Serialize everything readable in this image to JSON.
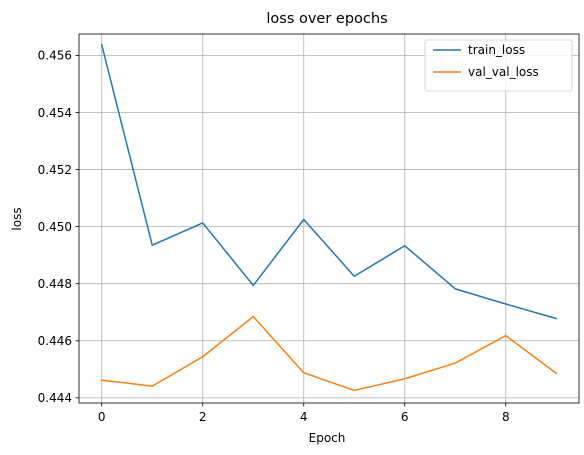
{
  "chart_data": {
    "type": "line",
    "title": "loss over epochs",
    "xlabel": "Epoch",
    "ylabel": "loss",
    "x": [
      0,
      1,
      2,
      3,
      4,
      5,
      6,
      7,
      8,
      9
    ],
    "xlim": [
      -0.45,
      9.45
    ],
    "ylim": [
      0.44382,
      0.45675
    ],
    "xticks": [
      0,
      2,
      4,
      6,
      8
    ],
    "xtick_labels": [
      "0",
      "2",
      "4",
      "6",
      "8"
    ],
    "yticks": [
      0.444,
      0.446,
      0.448,
      0.45,
      0.452,
      0.454,
      0.456
    ],
    "ytick_labels": [
      "0.444",
      "0.446",
      "0.448",
      "0.450",
      "0.452",
      "0.454",
      "0.456"
    ],
    "grid": true,
    "legend_position": "upper right",
    "series": [
      {
        "name": "train_loss",
        "color": "#1f77b4",
        "values": [
          0.45637,
          0.44935,
          0.45013,
          0.44794,
          0.45025,
          0.44826,
          0.44933,
          0.44782,
          0.44729,
          0.44678
        ]
      },
      {
        "name": "val_val_loss",
        "color": "#ff7f0e",
        "values": [
          0.44462,
          0.44441,
          0.44544,
          0.44685,
          0.44488,
          0.44426,
          0.44467,
          0.44522,
          0.44618,
          0.44486
        ]
      }
    ]
  }
}
